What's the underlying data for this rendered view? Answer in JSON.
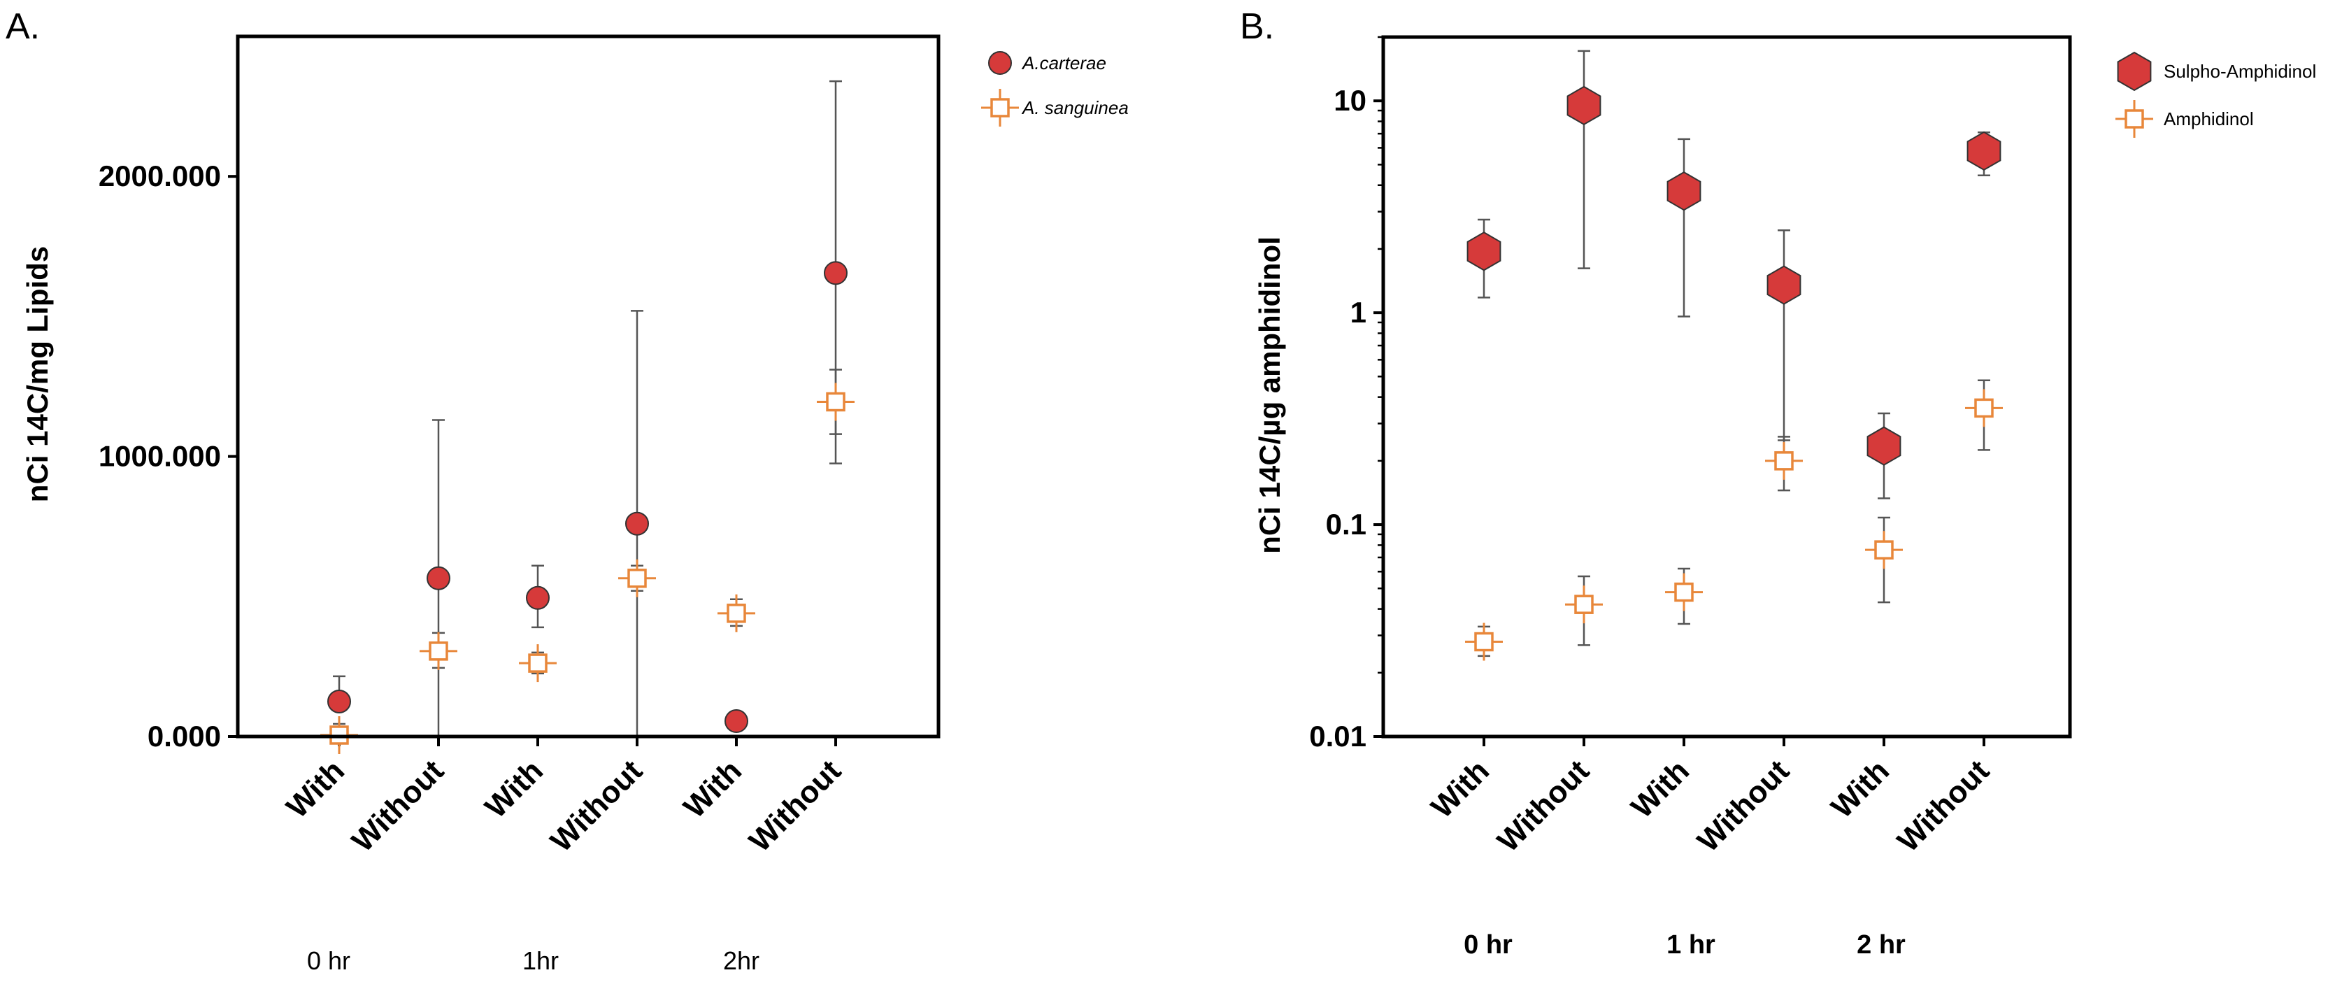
{
  "chart_data": [
    {
      "panel": "A.",
      "type": "scatter",
      "ylabel": "nCi 14C/mg Lipids",
      "yscale": "linear",
      "ylim": [
        0,
        2500
      ],
      "yticks": [
        0,
        1000,
        2000
      ],
      "ytick_labels": [
        "0.000",
        "1000.000",
        "2000.000"
      ],
      "categories": [
        "With",
        "Without",
        "With",
        "Without",
        "With",
        "Without"
      ],
      "groups": [
        "0 hr",
        "1hr",
        "2hr"
      ],
      "legend_position": "top-right",
      "series": [
        {
          "name": "A.carterae",
          "marker": "circle",
          "color": "#d63a3a",
          "values": [
            125,
            565,
            495,
            760,
            55,
            1655
          ],
          "err_low": [
            null,
            0,
            390,
            0,
            null,
            975
          ],
          "err_high": [
            215,
            1130,
            610,
            1520,
            null,
            2340
          ]
        },
        {
          "name": "A. sanguinea",
          "marker": "open-square-cross",
          "color": "#e8873a",
          "values": [
            5,
            305,
            262,
            565,
            440,
            1195
          ],
          "err_low": [
            -40,
            245,
            225,
            520,
            395,
            1080
          ],
          "err_high": [
            45,
            370,
            300,
            610,
            490,
            1310
          ]
        }
      ]
    },
    {
      "panel": "B.",
      "type": "scatter",
      "ylabel": "nCi 14C/µg amphidinol",
      "yscale": "log",
      "ylim": [
        0.01,
        20
      ],
      "yticks": [
        0.01,
        0.1,
        1,
        10
      ],
      "ytick_labels": [
        "0.01",
        "0.1",
        "1",
        "10"
      ],
      "categories": [
        "With",
        "Without",
        "With",
        "Without",
        "With",
        "Without"
      ],
      "groups": [
        "0 hr",
        "1 hr",
        "2 hr"
      ],
      "legend_position": "top-right",
      "series": [
        {
          "name": "Sulpho-Amphidinol",
          "marker": "hexagon",
          "color": "#d63a3a",
          "values": [
            1.95,
            9.5,
            3.75,
            1.35,
            0.235,
            5.8
          ],
          "err_low": [
            1.18,
            1.62,
            0.96,
            0.25,
            0.133,
            4.45
          ],
          "err_high": [
            2.75,
            17.2,
            6.6,
            2.45,
            0.335,
            7.1
          ]
        },
        {
          "name": "Amphidinol",
          "marker": "open-square-cross",
          "color": "#e8873a",
          "values": [
            0.028,
            0.042,
            0.048,
            0.2,
            0.076,
            0.355
          ],
          "err_low": [
            0.024,
            0.027,
            0.034,
            0.145,
            0.043,
            0.225
          ],
          "err_high": [
            0.033,
            0.057,
            0.062,
            0.26,
            0.108,
            0.48
          ]
        }
      ]
    }
  ]
}
